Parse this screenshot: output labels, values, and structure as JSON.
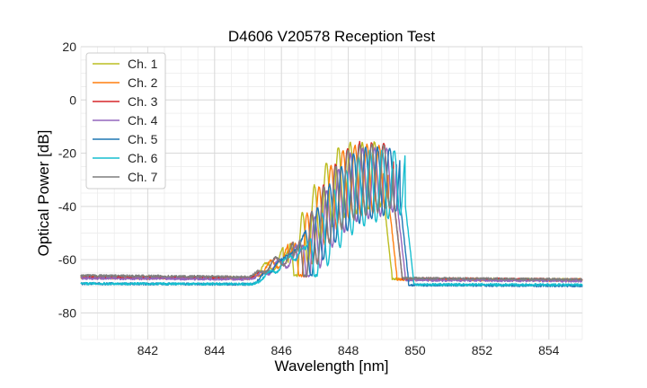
{
  "chart_data": {
    "type": "line",
    "title": "D4606 V20578 Reception Test",
    "xlabel": "Wavelength [nm]",
    "ylabel": "Optical Power [dB]",
    "xlim": [
      840.0,
      855.0
    ],
    "ylim": [
      -90,
      20
    ],
    "x_ticks": [
      842,
      844,
      846,
      848,
      850,
      852,
      854
    ],
    "y_ticks": [
      20,
      0,
      -20,
      -40,
      -60,
      -80
    ],
    "x_minor_step": 0.5,
    "y_minor_step": 5,
    "grid": true,
    "legend_position": "upper-left",
    "background_color": "#ffffff",
    "grid_color": "#d9d9d9",
    "series": [
      {
        "name": "Ch. 1",
        "color": "#bcbd22",
        "baseline_start": -66.5,
        "baseline_end": -67.5,
        "center": 847.7,
        "peak": -16,
        "rise": -65,
        "shift": 0.0
      },
      {
        "name": "Ch. 2",
        "color": "#ff7f0e",
        "baseline_start": -66.8,
        "baseline_end": -67.8,
        "center": 847.85,
        "peak": -17,
        "rise": -64,
        "shift": 0.1
      },
      {
        "name": "Ch. 3",
        "color": "#d62728",
        "baseline_start": -66.5,
        "baseline_end": -67.5,
        "center": 848.0,
        "peak": -16,
        "rise": -63,
        "shift": 0.2
      },
      {
        "name": "Ch. 4",
        "color": "#9467bd",
        "baseline_start": -67.0,
        "baseline_end": -68.0,
        "center": 848.1,
        "peak": -18,
        "rise": -64,
        "shift": 0.3
      },
      {
        "name": "Ch. 5",
        "color": "#1f77b4",
        "baseline_start": -69.0,
        "baseline_end": -69.8,
        "center": 848.2,
        "peak": -18,
        "rise": -57,
        "shift": 0.4
      },
      {
        "name": "Ch. 6",
        "color": "#17becf",
        "baseline_start": -69.0,
        "baseline_end": -69.5,
        "center": 848.35,
        "peak": -19,
        "rise": -60,
        "shift": 0.5
      },
      {
        "name": "Ch. 7",
        "color": "#7f7f7f",
        "baseline_start": -66.0,
        "baseline_end": -67.5,
        "center": 848.0,
        "peak": -17,
        "rise": -63,
        "shift": 0.15
      }
    ]
  }
}
